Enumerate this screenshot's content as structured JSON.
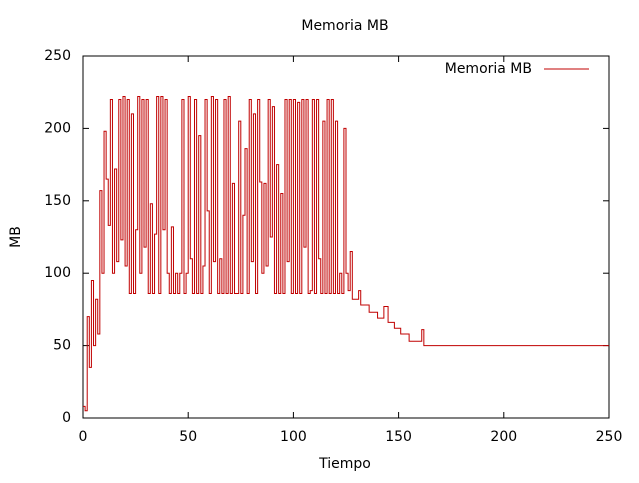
{
  "chart_data": {
    "type": "line",
    "steps": true,
    "title": "Memoria MB",
    "x_label": "Tiempo",
    "y_label": "MB",
    "x": [
      0,
      1,
      2,
      3,
      4,
      5,
      6,
      7,
      8,
      9,
      10,
      11,
      12,
      13,
      14,
      15,
      16,
      17,
      18,
      19,
      20,
      21,
      22,
      23,
      24,
      25,
      26,
      27,
      28,
      29,
      30,
      31,
      32,
      33,
      34,
      35,
      36,
      37,
      38,
      39,
      40,
      41,
      42,
      43,
      44,
      45,
      46,
      47,
      48,
      49,
      50,
      51,
      52,
      53,
      54,
      55,
      56,
      57,
      58,
      59,
      60,
      61,
      62,
      63,
      64,
      65,
      66,
      67,
      68,
      69,
      70,
      71,
      72,
      73,
      74,
      75,
      76,
      77,
      78,
      79,
      80,
      81,
      82,
      83,
      84,
      85,
      86,
      87,
      88,
      89,
      90,
      91,
      92,
      93,
      94,
      95,
      96,
      97,
      98,
      99,
      100,
      101,
      102,
      103,
      104,
      105,
      106,
      107,
      108,
      109,
      110,
      111,
      112,
      113,
      114,
      115,
      116,
      117,
      118,
      119,
      120,
      121,
      122,
      123,
      124,
      125,
      126,
      127,
      128,
      131,
      132,
      136,
      140,
      143,
      145,
      148,
      151,
      155,
      158,
      161,
      162,
      250
    ],
    "series": [
      {
        "name": "Memoria MB",
        "color": "#c00000",
        "values": [
          8,
          5,
          70,
          35,
          95,
          50,
          82,
          58,
          157,
          100,
          198,
          165,
          133,
          220,
          100,
          172,
          108,
          220,
          123,
          222,
          105,
          220,
          86,
          210,
          86,
          130,
          222,
          100,
          220,
          118,
          220,
          86,
          148,
          86,
          127,
          222,
          86,
          222,
          130,
          220,
          100,
          86,
          132,
          86,
          100,
          86,
          100,
          220,
          86,
          100,
          222,
          110,
          86,
          220,
          86,
          195,
          86,
          105,
          220,
          143,
          86,
          222,
          108,
          220,
          86,
          110,
          86,
          220,
          86,
          222,
          86,
          162,
          86,
          86,
          205,
          86,
          140,
          186,
          86,
          220,
          108,
          210,
          86,
          220,
          163,
          100,
          162,
          105,
          220,
          125,
          215,
          86,
          175,
          86,
          155,
          86,
          220,
          108,
          220,
          86,
          220,
          86,
          218,
          86,
          220,
          118,
          220,
          86,
          88,
          220,
          86,
          220,
          110,
          86,
          205,
          86,
          220,
          86,
          220,
          86,
          205,
          86,
          100,
          86,
          200,
          100,
          88,
          115,
          82,
          88,
          78,
          73,
          69,
          77,
          66,
          62,
          58,
          53,
          53,
          61,
          50,
          50
        ]
      }
    ],
    "xlim": [
      0,
      250
    ],
    "ylim": [
      0,
      250
    ],
    "xticks": [
      0,
      50,
      100,
      150,
      200,
      250
    ],
    "yticks": [
      0,
      50,
      100,
      150,
      200,
      250
    ],
    "legend": "top-right"
  }
}
